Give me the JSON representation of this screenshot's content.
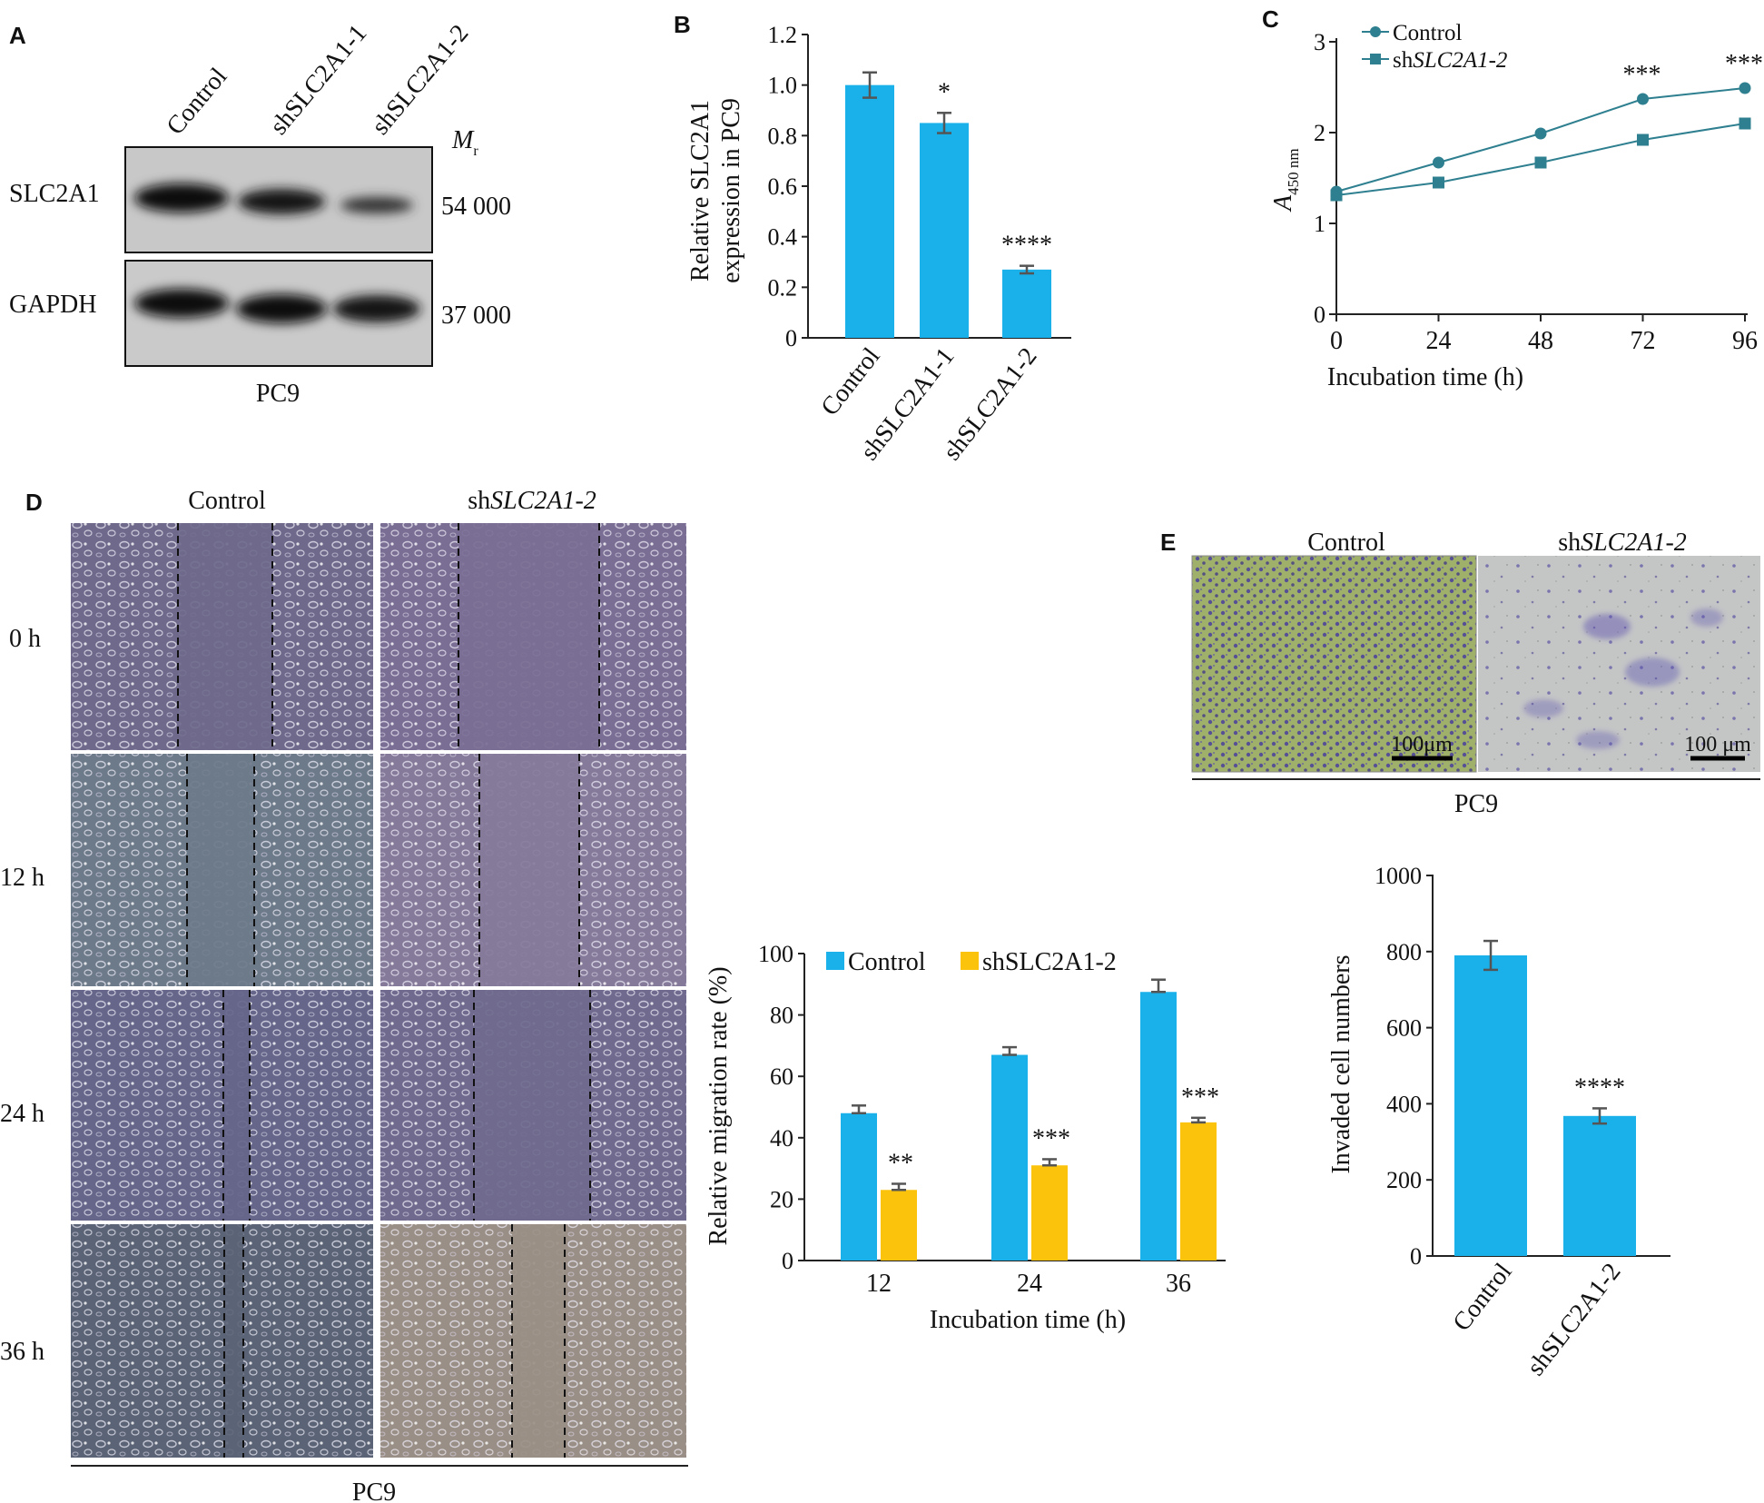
{
  "colors": {
    "blue": "#1AB0EA",
    "yellow": "#FBC30B",
    "line": "#2E7F8F"
  },
  "panelA": {
    "letter": "A",
    "lanes": [
      "Control",
      "shSLC2A1-1",
      "shSLC2A1-2"
    ],
    "mr_symbol": "M",
    "mr_sub": "r",
    "blots": [
      {
        "name": "SLC2A1",
        "mw": "54 000"
      },
      {
        "name": "GAPDH",
        "mw": "37 000"
      }
    ],
    "cell_line": "PC9"
  },
  "panelD": {
    "letter": "D",
    "groups": [
      {
        "prefix": "Control",
        "italic": ""
      },
      {
        "prefix": "sh",
        "italic": "SLC2A1-2"
      }
    ],
    "times": [
      "0 h",
      "12 h",
      "24 h",
      "36 h"
    ],
    "cell_line": "PC9"
  },
  "panelE": {
    "letter": "E",
    "groups": [
      {
        "prefix": "Control",
        "italic": ""
      },
      {
        "prefix": "sh",
        "italic": "SLC2A1-2"
      }
    ],
    "scale_bars": [
      "100μm",
      "100 μm"
    ],
    "cell_line": "PC9"
  },
  "chart_data": [
    {
      "id": "B",
      "type": "bar",
      "panel_letter": "B",
      "categories": [
        "Control",
        "shSLC2A1-1",
        "shSLC2A1-2"
      ],
      "values": [
        1.0,
        0.85,
        0.27
      ],
      "errors": [
        0.05,
        0.04,
        0.015
      ],
      "significance": [
        "",
        "*",
        "****"
      ],
      "ylabel_lines": [
        "Relative SLC2A1",
        "expression in PC9"
      ],
      "ylim": [
        0,
        1.2
      ],
      "yticks": [
        "0",
        "0.2",
        "0.4",
        "0.6",
        "0.8",
        "1.0",
        "1.2"
      ],
      "grid": false
    },
    {
      "id": "C",
      "type": "line",
      "panel_letter": "C",
      "x": [
        0,
        24,
        48,
        72,
        96
      ],
      "series": [
        {
          "name": "Control",
          "name_prefix": "",
          "name_italic": "",
          "marker": "circle",
          "values": [
            1.35,
            1.67,
            1.99,
            2.37,
            2.49
          ]
        },
        {
          "name": "shSLC2A1-2",
          "name_prefix": "sh",
          "name_italic": "SLC2A1-2",
          "marker": "square",
          "values": [
            1.31,
            1.45,
            1.67,
            1.92,
            2.1
          ]
        }
      ],
      "significance": [
        "",
        "",
        "",
        "***",
        "***"
      ],
      "xlabel": "Incubation time (h)",
      "ylabel_main": "A",
      "ylabel_sub": "450 nm",
      "xticks": [
        "0",
        "24",
        "48",
        "72",
        "96"
      ],
      "yticks": [
        "0",
        "1",
        "2",
        "3"
      ],
      "ylim": [
        0,
        3
      ],
      "xlim": [
        0,
        96
      ],
      "legend": "top-left"
    },
    {
      "id": "D",
      "type": "bar",
      "categories": [
        "12",
        "24",
        "36"
      ],
      "series": [
        {
          "name": "Control",
          "values": [
            48,
            67,
            87.5
          ],
          "errors": [
            2.5,
            2.5,
            4
          ]
        },
        {
          "name": "shSLC2A1-2",
          "values": [
            23,
            31,
            45
          ],
          "errors": [
            2,
            2,
            1.5
          ]
        }
      ],
      "significance": [
        "**",
        "***",
        "***"
      ],
      "xlabel": "Incubation time (h)",
      "ylabel": "Relative migration rate (%)",
      "ylim": [
        0,
        100
      ],
      "yticks": [
        "0",
        "20",
        "40",
        "60",
        "80",
        "100"
      ],
      "legend": "top"
    },
    {
      "id": "E",
      "type": "bar",
      "categories": [
        "Control",
        "shSLC2A1-2"
      ],
      "values": [
        790,
        368
      ],
      "errors": [
        38,
        20
      ],
      "significance": [
        "",
        "****"
      ],
      "ylabel": "Invaded cell numbers",
      "ylim": [
        0,
        1000
      ],
      "yticks": [
        "0",
        "200",
        "400",
        "600",
        "800",
        "1000"
      ]
    }
  ]
}
